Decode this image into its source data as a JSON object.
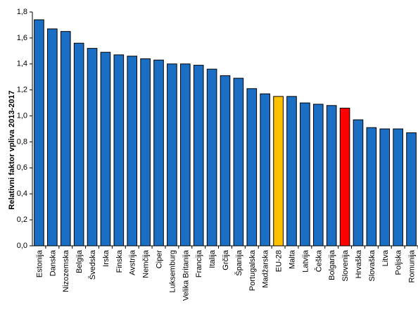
{
  "chart_data": {
    "type": "bar",
    "title": "",
    "xlabel": "",
    "ylabel": "Relativni faktor vpliva 2013-2017",
    "ylim": [
      0,
      1.8
    ],
    "ytick_step": 0.2,
    "yticks": [
      "0,0",
      "0,2",
      "0,4",
      "0,6",
      "0,8",
      "1,0",
      "1,2",
      "1,4",
      "1,6",
      "1,8"
    ],
    "grid": false,
    "legend": "none",
    "colors": {
      "default": "#1a6fc4",
      "highlight_eu": "#ffc000",
      "highlight_si": "#ff0000",
      "edge": "#000000"
    },
    "categories": [
      "Estonija",
      "Danska",
      "Nizozemska",
      "Belgija",
      "Švedska",
      "Irska",
      "Finska",
      "Avstrija",
      "Nemčija",
      "Ciper",
      "Luksemburg",
      "Velika Britanija",
      "Francija",
      "Italija",
      "Grčija",
      "Španija",
      "Portugalska",
      "Madžarska",
      "EU-28",
      "Malta",
      "Latvija",
      "Češka",
      "Bolgarija",
      "Slovenija",
      "Hrvaška",
      "Slovaška",
      "Litva",
      "Poljska",
      "Romunija"
    ],
    "values": [
      1.74,
      1.67,
      1.65,
      1.56,
      1.52,
      1.49,
      1.47,
      1.46,
      1.44,
      1.43,
      1.4,
      1.4,
      1.39,
      1.36,
      1.31,
      1.29,
      1.21,
      1.17,
      1.15,
      1.15,
      1.1,
      1.09,
      1.08,
      1.06,
      0.97,
      0.91,
      0.9,
      0.9,
      0.87
    ],
    "bar_colors": [
      "default",
      "default",
      "default",
      "default",
      "default",
      "default",
      "default",
      "default",
      "default",
      "default",
      "default",
      "default",
      "default",
      "default",
      "default",
      "default",
      "default",
      "default",
      "highlight_eu",
      "default",
      "default",
      "default",
      "default",
      "highlight_si",
      "default",
      "default",
      "default",
      "default",
      "default"
    ]
  }
}
